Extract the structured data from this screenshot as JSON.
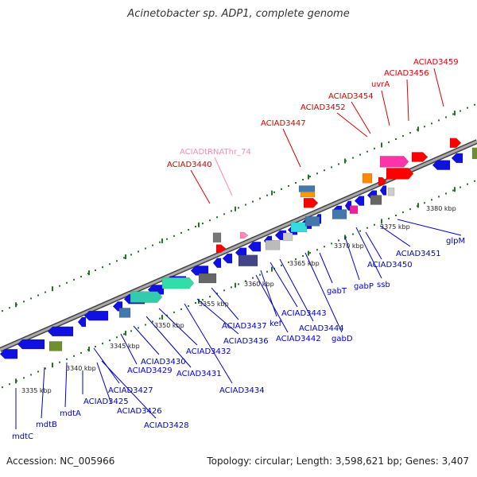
{
  "title": "Acinetobacter sp. ADP1, complete genome",
  "footer": {
    "accession": "Accession: NC_005966",
    "summary": "Topology: circular; Length: 3,598,621 bp; Genes: 3,407"
  },
  "colors": {
    "backbone": "#888888",
    "blue_gene": "#1010e0",
    "red_gene": "#ff0000",
    "blue_label": "#0000cc",
    "red_label": "#dd0000",
    "trna_label": "#ff88bb",
    "tick": "#227722"
  },
  "kbp_marks": [
    "3335 kbp",
    "3340 kbp",
    "3345 kbp",
    "3350 kbp",
    "3355 kbp",
    "3360 kbp",
    "3365 kbp",
    "3370 kbp",
    "3375 kbp",
    "3380 kbp"
  ],
  "red_labels": [
    "ACIAD3440",
    "ACIAD3447",
    "ACIAD3452",
    "ACIAD3454",
    "uvrA",
    "ACIAD3456",
    "ACIAD3459"
  ],
  "trna_label": "ACIADtRNAThr_74",
  "blue_labels": [
    "mdtC",
    "mdtB",
    "mdtA",
    "ACIAD3425",
    "ACIAD3426",
    "ACIAD3427",
    "ACIAD3428",
    "ACIAD3429",
    "ACIAD3430",
    "ACIAD3431",
    "ACIAD3432",
    "ACIAD3434",
    "ACIAD3436",
    "ACIAD3437",
    "kef",
    "ACIAD3442",
    "ACIAD3443",
    "ACIAD3444",
    "gabD",
    "gabT",
    "gabP",
    "ssb",
    "ACIAD3450",
    "ACIAD3451",
    "glpM"
  ]
}
